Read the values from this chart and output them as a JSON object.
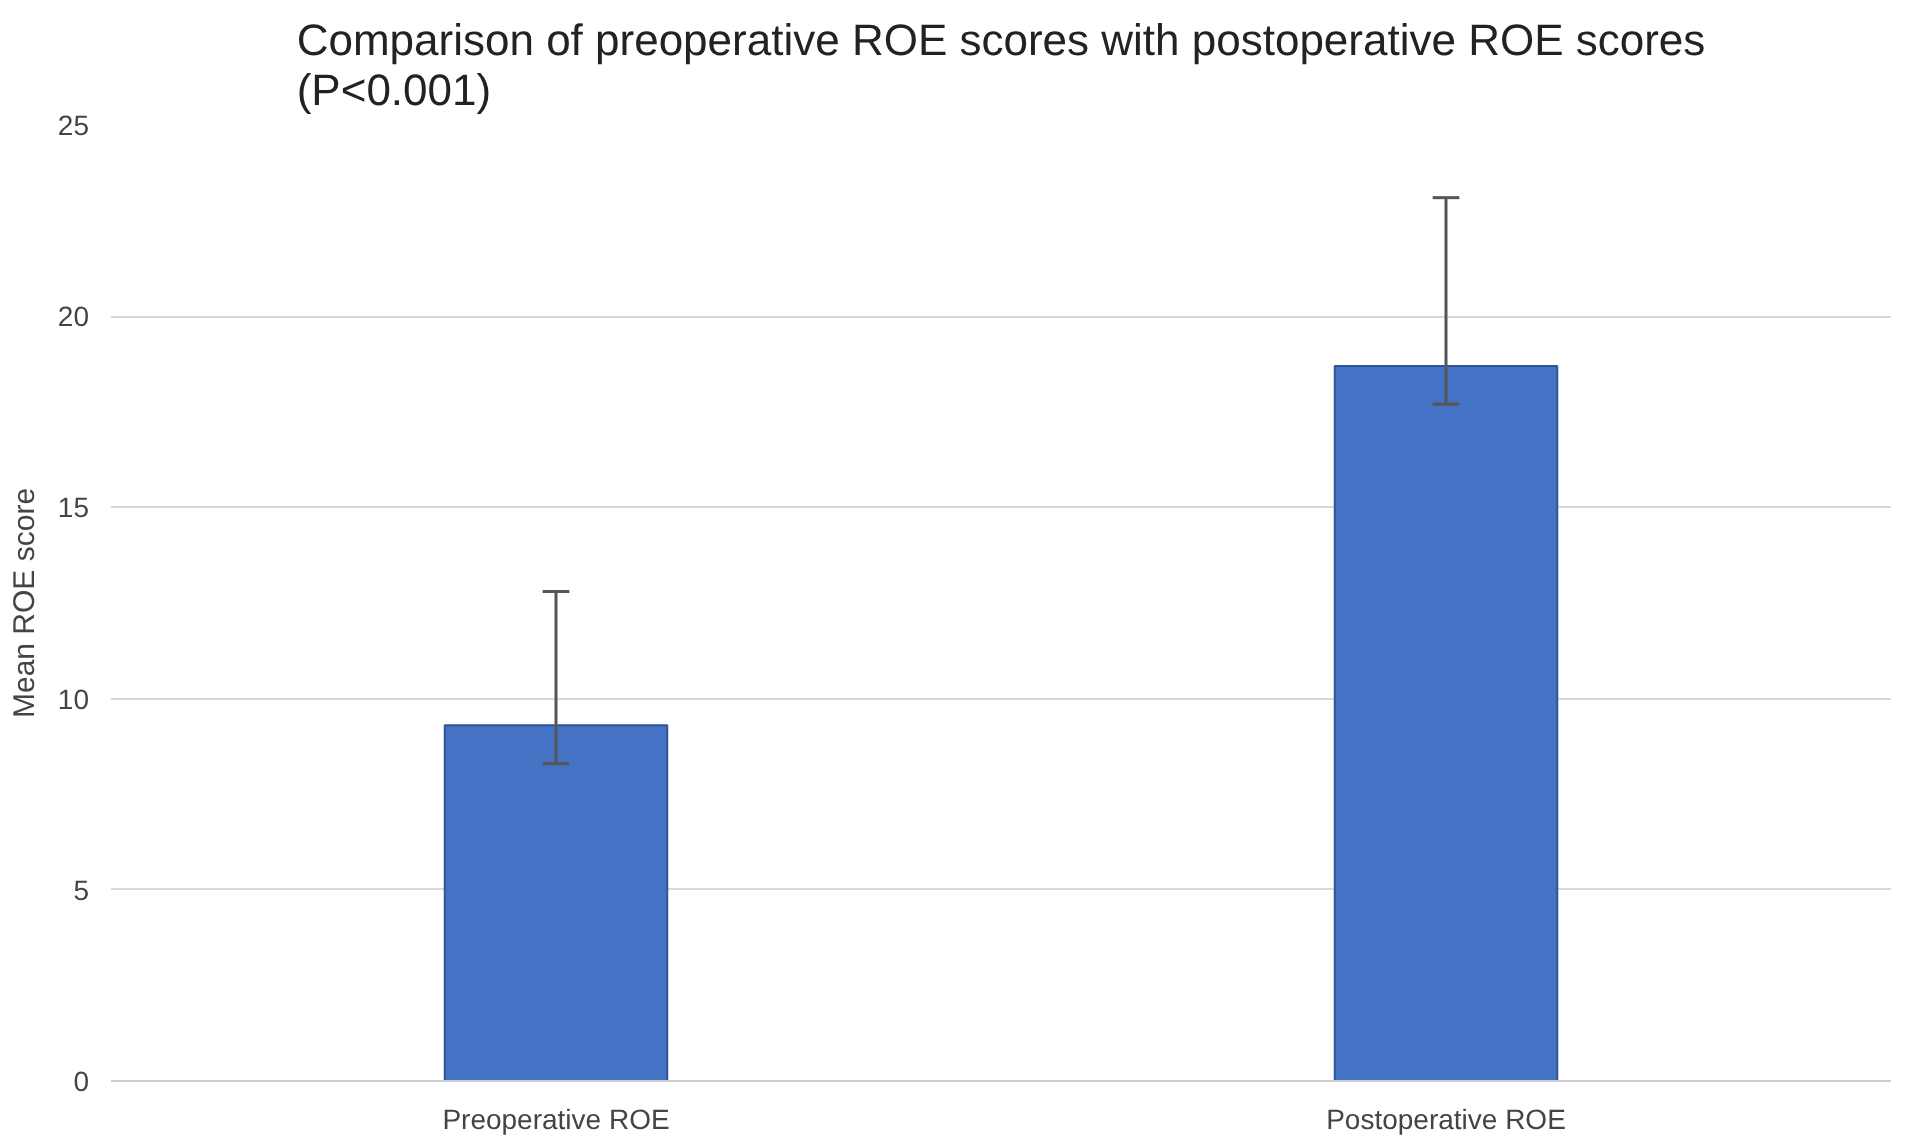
{
  "chart_data": {
    "type": "bar",
    "title": "Comparison of preoperative ROE scores with postoperative ROE scores (P<0.001)",
    "ylabel": "Mean ROE score",
    "categories": [
      "Preoperative ROE",
      "Postoperative ROE"
    ],
    "values": [
      9.3,
      18.7
    ],
    "color": "#4472c4",
    "errors": [
      [
        8.3,
        12.8
      ],
      [
        17.7,
        23.1
      ]
    ],
    "ylim": [
      0,
      25
    ],
    "yticks": [
      0,
      5,
      10,
      15,
      20,
      25
    ],
    "grid": "y"
  }
}
